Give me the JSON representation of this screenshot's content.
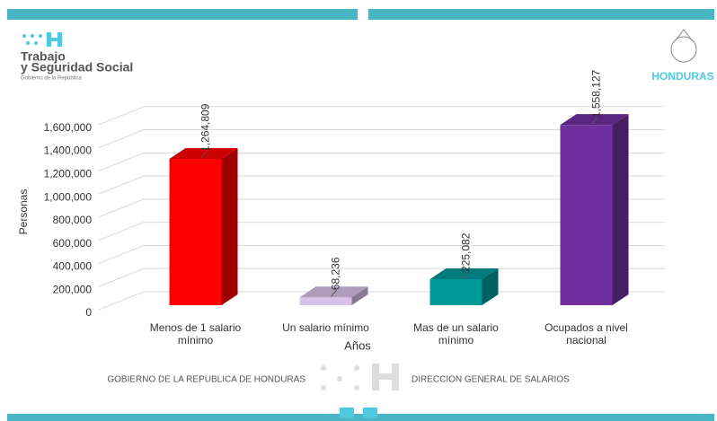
{
  "header": {
    "brand_line1": "Trabajo",
    "brand_line2": "y Seguridad Social",
    "brand_sub": "Gobierno de la República",
    "right_logo": "HONDURAS"
  },
  "footer": {
    "left": "GOBIERNO DE LA REPUBLICA DE HONDURAS",
    "right": "DIRECCION GENERAL DE SALARIOS"
  },
  "chart_data": {
    "type": "bar3d",
    "categories": [
      "Menos de 1 salario mínimo",
      "Un salario mínimo",
      "Mas de un salario mínimo",
      "Ocupados a nivel nacional"
    ],
    "values": [
      1264809,
      68236,
      225082,
      1558127
    ],
    "value_labels": [
      "1,264,809",
      "68,236",
      "225,082",
      "1,558,127"
    ],
    "colors": [
      "#ff0000",
      "#d9c3e9",
      "#009999",
      "#7030a0"
    ],
    "x_label": "Años",
    "y_label": "Personas",
    "ylim": [
      0,
      1800000
    ],
    "yticks": [
      0,
      {
        "value": 200000,
        "label": "200,000"
      },
      {
        "value": 400000,
        "label": "400,000"
      },
      {
        "value": 600000,
        "label": "600,000"
      },
      {
        "value": 800000,
        "label": "800,000"
      },
      {
        "value": 1000000,
        "label": "1,000,000"
      },
      {
        "value": 1200000,
        "label": "1,200,000"
      },
      {
        "value": 1400000,
        "label": "1,400,000"
      },
      {
        "value": 1600000,
        "label": "1,600,000"
      }
    ],
    "grid": true
  }
}
